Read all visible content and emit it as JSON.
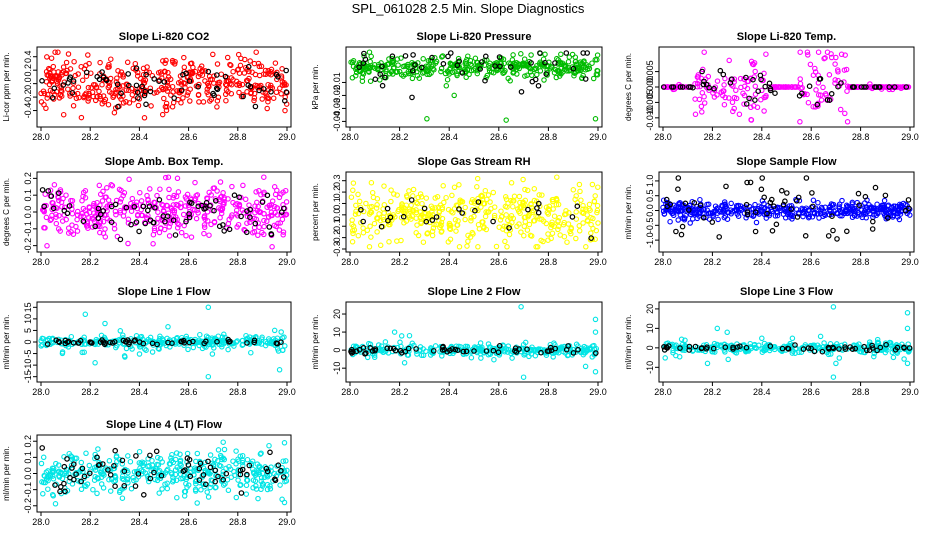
{
  "figure": {
    "title": "SPL_061028  2.5 Min. Slope Diagnostics",
    "background": "#ffffff"
  },
  "chart_data": [
    {
      "type": "scatter",
      "title": "Slope Li-820 CO2",
      "ylabel": "Li-cor ppm per min.",
      "color": "#ff0000",
      "xlim": [
        28.0,
        29.0
      ],
      "ylim": [
        -0.6,
        0.5
      ],
      "xticks": [
        28.0,
        28.2,
        28.4,
        28.6,
        28.8,
        29.0
      ],
      "yticks": [
        -0.4,
        -0.2,
        0.0,
        0.2,
        0.4
      ],
      "ytick_labels": [
        "-0.4",
        "-0.2",
        "0.0",
        "0.2",
        "0.4"
      ],
      "pattern": "cloud",
      "spread": 0.2,
      "black_spread": 0.15,
      "n": 420,
      "nblack": 60,
      "seed": 11
    },
    {
      "type": "scatter",
      "title": "Slope Li-820 Pressure",
      "ylabel": "kPa per min.",
      "color": "#00bb00",
      "xlim": [
        28.0,
        29.0
      ],
      "ylim": [
        -0.042,
        0.015
      ],
      "xticks": [
        28.0,
        28.2,
        28.4,
        28.6,
        28.8,
        29.0
      ],
      "yticks": [
        -0.04,
        -0.03,
        -0.02,
        -0.01
      ],
      "ytick_labels": [
        "-0.04",
        "-0.03",
        "-0.02",
        "-0.01"
      ],
      "pattern": "band",
      "center": 0.002,
      "spread": 0.004,
      "black_spread": 0.008,
      "outliers": [
        [
          28.05,
          -0.009
        ],
        [
          28.12,
          -0.008
        ],
        [
          28.31,
          -0.038
        ],
        [
          28.63,
          -0.039
        ],
        [
          28.99,
          -0.038
        ],
        [
          28.42,
          -0.02
        ]
      ],
      "n": 380,
      "nblack": 45,
      "seed": 23
    },
    {
      "type": "scatter",
      "title": "Slope Li-820 Temp.",
      "ylabel": "degrees C per min.",
      "color": "#ff00ff",
      "xlim": [
        28.0,
        29.0
      ],
      "ylim": [
        -0.012,
        0.012
      ],
      "xticks": [
        28.0,
        28.2,
        28.4,
        28.6,
        28.8,
        29.0
      ],
      "yticks": [
        -0.01,
        -0.005,
        0.0,
        0.005
      ],
      "ytick_labels": [
        "-0.010",
        "-0.005",
        "0.000",
        "0.005"
      ],
      "pattern": "bursts",
      "bursts": [
        [
          28.12,
          28.42,
          0.005
        ],
        [
          28.55,
          28.75,
          0.006
        ]
      ],
      "n": 300,
      "nblack": 55,
      "seed": 37
    },
    {
      "type": "scatter",
      "title": "Slope Amb. Box Temp.",
      "ylabel": "degrees C per min.",
      "color": "#ff00ff",
      "xlim": [
        28.0,
        29.0
      ],
      "ylim": [
        -0.22,
        0.22
      ],
      "xticks": [
        28.0,
        28.2,
        28.4,
        28.6,
        28.8,
        29.0
      ],
      "yticks": [
        -0.2,
        -0.1,
        0.0,
        0.1,
        0.2
      ],
      "ytick_labels": [
        "-0.2",
        "-0.1",
        "0.0",
        "0.1",
        "0.2"
      ],
      "pattern": "cloud",
      "spread": 0.08,
      "black_spread": 0.07,
      "n": 420,
      "nblack": 70,
      "seed": 41
    },
    {
      "type": "scatter",
      "title": "Slope Gas Stream RH",
      "ylabel": "percent per min.",
      "color": "#ffff00",
      "xlim": [
        28.0,
        29.0
      ],
      "ylim": [
        -0.3,
        0.35
      ],
      "xticks": [
        28.0,
        28.2,
        28.4,
        28.6,
        28.8,
        29.0
      ],
      "yticks": [
        -0.3,
        -0.2,
        -0.1,
        0.0,
        0.1,
        0.2,
        0.3
      ],
      "ytick_labels": [
        "-0.3",
        "-0.2",
        "-0.1",
        "0.0",
        "0.1",
        "0.2",
        "0.3"
      ],
      "pattern": "cloud",
      "spread": 0.13,
      "black_spread": 0.08,
      "n": 420,
      "nblack": 25,
      "seed": 53
    },
    {
      "type": "scatter",
      "title": "Slope Sample Flow",
      "ylabel": "ml/min per min.",
      "color": "#0000ff",
      "xlim": [
        28.0,
        29.0
      ],
      "ylim": [
        -1.3,
        1.2
      ],
      "xticks": [
        28.0,
        28.2,
        28.4,
        28.6,
        28.8,
        29.0
      ],
      "yticks": [
        -1.0,
        -0.5,
        0.0,
        0.5,
        1.0
      ],
      "ytick_labels": [
        "-1.0",
        "-0.5",
        "0.0",
        "0.5",
        "1.0"
      ],
      "pattern": "band",
      "center": 0.0,
      "spread": 0.13,
      "black_spread": 0.6,
      "n": 420,
      "nblack": 60,
      "seed": 67
    },
    {
      "type": "scatter",
      "title": "Slope Line 1 Flow",
      "ylabel": "ml/min per min.",
      "color": "#00e5e5",
      "xlim": [
        28.0,
        29.0
      ],
      "ylim": [
        -16,
        16
      ],
      "xticks": [
        28.0,
        28.2,
        28.4,
        28.6,
        28.8,
        29.0
      ],
      "yticks": [
        -15,
        -10,
        -5,
        0,
        5,
        10,
        15
      ],
      "ytick_labels": [
        "-15",
        "-10",
        "-5",
        "0",
        "5",
        "10",
        "15"
      ],
      "pattern": "flat",
      "spread": 1.2,
      "black_spread": 0.4,
      "outliers": [
        [
          28.18,
          12
        ],
        [
          28.22,
          -9
        ],
        [
          28.26,
          8
        ],
        [
          28.34,
          -6
        ],
        [
          28.68,
          15
        ],
        [
          28.68,
          -15
        ],
        [
          28.97,
          -12
        ],
        [
          28.95,
          5
        ]
      ],
      "n": 300,
      "nblack": 55,
      "seed": 71
    },
    {
      "type": "scatter",
      "title": "Slope Line 2 Flow",
      "ylabel": "ml/min per min.",
      "color": "#00e5e5",
      "xlim": [
        28.0,
        29.0
      ],
      "ylim": [
        -16,
        25
      ],
      "xticks": [
        28.0,
        28.2,
        28.4,
        28.6,
        28.8,
        29.0
      ],
      "yticks": [
        -10,
        0,
        10,
        20
      ],
      "ytick_labels": [
        "-10",
        "0",
        "10",
        "20"
      ],
      "pattern": "flat",
      "spread": 1.5,
      "black_spread": 1.2,
      "outliers": [
        [
          28.18,
          10
        ],
        [
          28.22,
          -7
        ],
        [
          28.24,
          8
        ],
        [
          28.69,
          24
        ],
        [
          28.7,
          -15
        ],
        [
          28.95,
          -9
        ],
        [
          28.99,
          17
        ],
        [
          28.99,
          -12
        ],
        [
          28.99,
          10
        ]
      ],
      "n": 300,
      "nblack": 55,
      "seed": 83
    },
    {
      "type": "scatter",
      "title": "Slope Line 3 Flow",
      "ylabel": "ml/min per min.",
      "color": "#00e5e5",
      "xlim": [
        28.0,
        29.0
      ],
      "ylim": [
        -16,
        22
      ],
      "xticks": [
        28.0,
        28.2,
        28.4,
        28.6,
        28.8,
        29.0
      ],
      "yticks": [
        -10,
        0,
        10,
        20
      ],
      "ytick_labels": [
        "-10",
        "0",
        "10",
        "20"
      ],
      "pattern": "flat",
      "spread": 1.3,
      "black_spread": 1.0,
      "outliers": [
        [
          28.18,
          -8
        ],
        [
          28.22,
          10
        ],
        [
          28.26,
          8
        ],
        [
          28.69,
          21
        ],
        [
          28.69,
          -15
        ],
        [
          28.7,
          -8
        ],
        [
          28.99,
          18
        ],
        [
          28.99,
          -8
        ],
        [
          28.99,
          10
        ]
      ],
      "n": 300,
      "nblack": 55,
      "seed": 97
    },
    {
      "type": "scatter",
      "title": "Slope Line 4 (LT) Flow",
      "ylabel": "ml/min per min.",
      "color": "#00e5e5",
      "xlim": [
        28.0,
        29.0
      ],
      "ylim": [
        -0.22,
        0.22
      ],
      "xticks": [
        28.0,
        28.2,
        28.4,
        28.6,
        28.8,
        29.0
      ],
      "yticks": [
        -0.2,
        -0.1,
        0.0,
        0.1,
        0.2
      ],
      "ytick_labels": [
        "-0.2",
        "-0.1",
        "0.0",
        "0.1",
        "0.2"
      ],
      "pattern": "cloud",
      "spread": 0.07,
      "black_spread": 0.06,
      "outliers": [
        [
          28.99,
          0.19
        ],
        [
          28.99,
          -0.18
        ],
        [
          28.98,
          -0.16
        ]
      ],
      "n": 420,
      "nblack": 70,
      "seed": 103
    }
  ]
}
